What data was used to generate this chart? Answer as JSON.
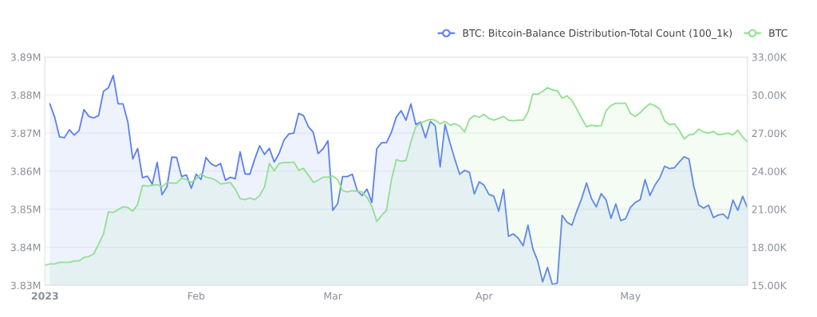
{
  "chart_data": {
    "type": "area",
    "x": [
      "2023-01-01",
      "2023-01-02",
      "2023-01-03",
      "2023-01-04",
      "2023-01-05",
      "2023-01-06",
      "2023-01-07",
      "2023-01-08",
      "2023-01-09",
      "2023-01-10",
      "2023-01-11",
      "2023-01-12",
      "2023-01-13",
      "2023-01-14",
      "2023-01-15",
      "2023-01-16",
      "2023-01-17",
      "2023-01-18",
      "2023-01-19",
      "2023-01-20",
      "2023-01-21",
      "2023-01-22",
      "2023-01-23",
      "2023-01-24",
      "2023-01-25",
      "2023-01-26",
      "2023-01-27",
      "2023-01-28",
      "2023-01-29",
      "2023-01-30",
      "2023-01-31",
      "2023-02-01",
      "2023-02-02",
      "2023-02-03",
      "2023-02-04",
      "2023-02-05",
      "2023-02-06",
      "2023-02-07",
      "2023-02-08",
      "2023-02-09",
      "2023-02-10",
      "2023-02-11",
      "2023-02-12",
      "2023-02-13",
      "2023-02-14",
      "2023-02-15",
      "2023-02-16",
      "2023-02-17",
      "2023-02-18",
      "2023-02-19",
      "2023-02-20",
      "2023-02-21",
      "2023-02-22",
      "2023-02-23",
      "2023-02-24",
      "2023-02-25",
      "2023-02-26",
      "2023-02-27",
      "2023-02-28",
      "2023-03-01",
      "2023-03-02",
      "2023-03-03",
      "2023-03-04",
      "2023-03-05",
      "2023-03-06",
      "2023-03-07",
      "2023-03-08",
      "2023-03-09",
      "2023-03-10",
      "2023-03-11",
      "2023-03-12",
      "2023-03-13",
      "2023-03-14",
      "2023-03-15",
      "2023-03-16",
      "2023-03-17",
      "2023-03-18",
      "2023-03-19",
      "2023-03-20",
      "2023-03-21",
      "2023-03-22",
      "2023-03-23",
      "2023-03-24",
      "2023-03-25",
      "2023-03-26",
      "2023-03-27",
      "2023-03-28",
      "2023-03-29",
      "2023-03-30",
      "2023-03-31",
      "2023-04-01",
      "2023-04-02",
      "2023-04-03",
      "2023-04-04",
      "2023-04-05",
      "2023-04-06",
      "2023-04-07",
      "2023-04-08",
      "2023-04-09",
      "2023-04-10",
      "2023-04-11",
      "2023-04-12",
      "2023-04-13",
      "2023-04-14",
      "2023-04-15",
      "2023-04-16",
      "2023-04-17",
      "2023-04-18",
      "2023-04-19",
      "2023-04-20",
      "2023-04-21",
      "2023-04-22",
      "2023-04-23",
      "2023-04-24",
      "2023-04-25",
      "2023-04-26",
      "2023-04-27",
      "2023-04-28",
      "2023-04-29",
      "2023-04-30",
      "2023-05-01",
      "2023-05-02",
      "2023-05-03",
      "2023-05-04",
      "2023-05-05",
      "2023-05-06",
      "2023-05-07",
      "2023-05-08",
      "2023-05-09",
      "2023-05-10",
      "2023-05-11",
      "2023-05-12",
      "2023-05-13",
      "2023-05-14",
      "2023-05-15",
      "2023-05-16",
      "2023-05-17",
      "2023-05-18",
      "2023-05-19",
      "2023-05-20",
      "2023-05-21",
      "2023-05-22",
      "2023-05-23",
      "2023-05-24",
      "2023-05-25"
    ],
    "series": [
      {
        "name": "BTC: Bitcoin-Balance Distribution-Total Count (100_1k)",
        "color": "#5b7ff0",
        "values": [
          null,
          3.8777,
          3.8742,
          3.869,
          3.8688,
          3.8709,
          3.8695,
          3.8707,
          3.8762,
          3.8744,
          3.874,
          3.8746,
          3.881,
          3.8819,
          3.8852,
          3.8777,
          3.8777,
          3.8729,
          3.8632,
          3.866,
          3.8583,
          3.8587,
          3.8566,
          3.8623,
          3.8538,
          3.8559,
          3.8637,
          3.8636,
          3.8586,
          3.859,
          3.8555,
          3.8592,
          3.8578,
          3.8636,
          3.862,
          3.8613,
          3.862,
          3.8576,
          3.8584,
          3.858,
          3.8651,
          3.8593,
          3.8592,
          3.8632,
          3.8667,
          3.8644,
          3.866,
          3.8624,
          3.8647,
          3.8682,
          3.8698,
          3.87,
          3.8752,
          3.8746,
          3.8717,
          3.8702,
          3.8646,
          3.8659,
          3.868,
          3.8497,
          3.8515,
          3.8586,
          3.8586,
          3.8592,
          3.8549,
          3.8536,
          3.8553,
          3.8518,
          3.8659,
          3.8675,
          3.8675,
          3.8702,
          3.8742,
          3.8759,
          3.8734,
          3.8777,
          3.8723,
          3.8729,
          3.8688,
          3.8731,
          3.8719,
          3.8611,
          3.8723,
          3.8675,
          3.8632,
          3.8592,
          3.8602,
          3.8597,
          3.854,
          3.8572,
          3.8563,
          3.8539,
          3.8534,
          3.8495,
          3.8552,
          3.8429,
          3.8435,
          3.8424,
          3.8404,
          3.8458,
          3.8396,
          3.8364,
          3.8309,
          3.8347,
          3.8302,
          3.8306,
          3.8484,
          3.8466,
          3.8458,
          3.8495,
          3.8528,
          3.8569,
          3.8528,
          3.8506,
          3.8541,
          3.8525,
          3.8476,
          3.8514,
          3.847,
          3.8475,
          3.8505,
          3.8518,
          3.8525,
          3.8578,
          3.8536,
          3.8563,
          3.8582,
          3.8613,
          3.8607,
          3.8609,
          3.8624,
          3.8638,
          3.8632,
          3.8559,
          3.8511,
          3.8503,
          3.8511,
          3.8478,
          3.8485,
          3.8487,
          3.8475,
          3.8524,
          3.8497,
          3.8534,
          3.8503
        ]
      },
      {
        "name": "BTC",
        "color": "#91e08f",
        "axis": "y2",
        "values": [
          16.58,
          16.69,
          16.69,
          16.81,
          16.81,
          16.81,
          16.92,
          16.92,
          17.2,
          17.27,
          17.48,
          18.24,
          19.05,
          20.79,
          20.75,
          20.98,
          21.19,
          21.14,
          20.84,
          21.37,
          22.88,
          22.83,
          22.88,
          22.95,
          22.76,
          23.11,
          23.06,
          23.06,
          23.46,
          23.34,
          23.11,
          23.39,
          23.8,
          23.53,
          23.46,
          23.29,
          23.0,
          23.04,
          23.11,
          22.6,
          21.83,
          21.76,
          21.88,
          21.76,
          22.07,
          22.76,
          24.61,
          24.03,
          24.61,
          24.68,
          24.68,
          24.73,
          24.08,
          24.22,
          23.69,
          23.11,
          23.29,
          23.53,
          23.53,
          23.62,
          23.34,
          22.46,
          22.37,
          22.46,
          22.41,
          22.37,
          21.95,
          21.25,
          20.05,
          20.51,
          20.91,
          23.29,
          24.91,
          24.78,
          24.85,
          26.3,
          27.51,
          27.79,
          27.97,
          28.09,
          28.02,
          27.74,
          27.93,
          27.63,
          27.74,
          27.56,
          27.09,
          28.09,
          28.39,
          28.25,
          28.48,
          28.16,
          28.02,
          28.16,
          28.32,
          28.02,
          27.97,
          28.02,
          28.02,
          28.67,
          30.1,
          30.06,
          30.29,
          30.59,
          30.41,
          30.34,
          29.76,
          29.94,
          29.59,
          28.9,
          28.16,
          27.51,
          27.63,
          27.56,
          27.58,
          28.78,
          29.18,
          29.36,
          29.36,
          29.36,
          28.55,
          28.32,
          28.62,
          29.02,
          29.32,
          29.18,
          28.9,
          27.97,
          27.67,
          27.74,
          27.23,
          26.54,
          26.86,
          26.93,
          27.32,
          27.09,
          27.0,
          27.14,
          26.88,
          26.93,
          27.0,
          26.86,
          27.23,
          26.7,
          26.3
        ]
      }
    ],
    "xlim": [
      "2023-01-01",
      "2023-05-25"
    ],
    "xticks": [
      {
        "value": "2023-01-01",
        "label": "2023"
      },
      {
        "value": "2023-02-01",
        "label": "Feb"
      },
      {
        "value": "2023-03-01",
        "label": "Mar"
      },
      {
        "value": "2023-04-01",
        "label": "Apr"
      },
      {
        "value": "2023-05-01",
        "label": "May"
      }
    ],
    "ylim": [
      3.83,
      3.89
    ],
    "yticks": [
      {
        "value": 3.83,
        "label": "3.83M"
      },
      {
        "value": 3.84,
        "label": "3.84M"
      },
      {
        "value": 3.85,
        "label": "3.85M"
      },
      {
        "value": 3.86,
        "label": "3.86M"
      },
      {
        "value": 3.87,
        "label": "3.87M"
      },
      {
        "value": 3.88,
        "label": "3.88M"
      },
      {
        "value": 3.89,
        "label": "3.89M"
      }
    ],
    "y2lim": [
      15,
      33
    ],
    "y2ticks": [
      {
        "value": 15,
        "label": "15.00K"
      },
      {
        "value": 18,
        "label": "18.00K"
      },
      {
        "value": 21,
        "label": "21.00K"
      },
      {
        "value": 24,
        "label": "24.00K"
      },
      {
        "value": 27,
        "label": "27.00K"
      },
      {
        "value": 30,
        "label": "30.00K"
      },
      {
        "value": 33,
        "label": "33.00K"
      }
    ],
    "grid": "y",
    "legend": "top right"
  }
}
